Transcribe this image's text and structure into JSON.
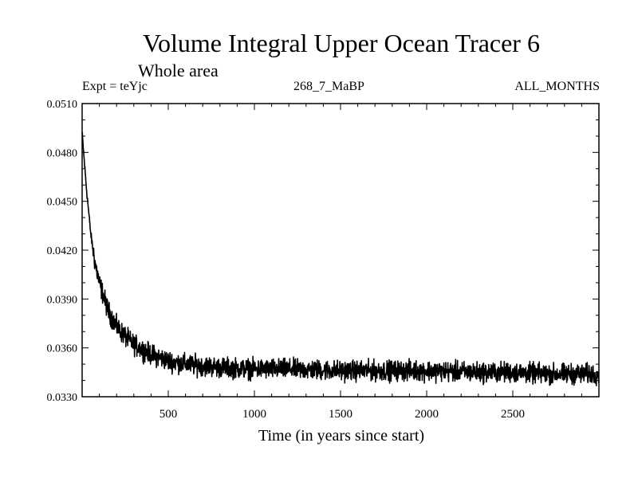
{
  "chart_data": {
    "type": "line",
    "title": "Volume Integral Upper Ocean Tracer 6",
    "subtitle": "Whole area",
    "expt_label": "Expt = teYjc",
    "run_label": "268_7_MaBP",
    "months_label": "ALL_MONTHS",
    "xlabel": "Time (in years since start)",
    "ylabel": "",
    "xlim": [
      0,
      3000
    ],
    "ylim": [
      0.033,
      0.051
    ],
    "x_ticks": [
      500,
      1000,
      1500,
      2000,
      2500
    ],
    "x_tick_labels": [
      "500",
      "1000",
      "1500",
      "2000",
      "2500"
    ],
    "y_ticks": [
      0.033,
      0.036,
      0.039,
      0.042,
      0.045,
      0.048,
      0.051
    ],
    "y_tick_labels": [
      "0.0330",
      "0.0360",
      "0.0390",
      "0.0420",
      "0.0450",
      "0.0480",
      "0.0510"
    ],
    "series": [
      {
        "name": "Tracer 6",
        "color": "#000000",
        "x": [
          0,
          10,
          25,
          50,
          75,
          100,
          150,
          200,
          250,
          300,
          400,
          500,
          600,
          700,
          800,
          1000,
          1200,
          1500,
          1800,
          2000,
          2300,
          2500,
          2700,
          3000
        ],
        "values": [
          0.0492,
          0.0478,
          0.0458,
          0.043,
          0.0412,
          0.04,
          0.0383,
          0.0373,
          0.0367,
          0.0362,
          0.0356,
          0.0352,
          0.035,
          0.0349,
          0.0348,
          0.0347,
          0.0347,
          0.0346,
          0.0346,
          0.0346,
          0.0345,
          0.0345,
          0.0344,
          0.0344
        ],
        "noise_amplitude": 0.0006
      }
    ]
  }
}
